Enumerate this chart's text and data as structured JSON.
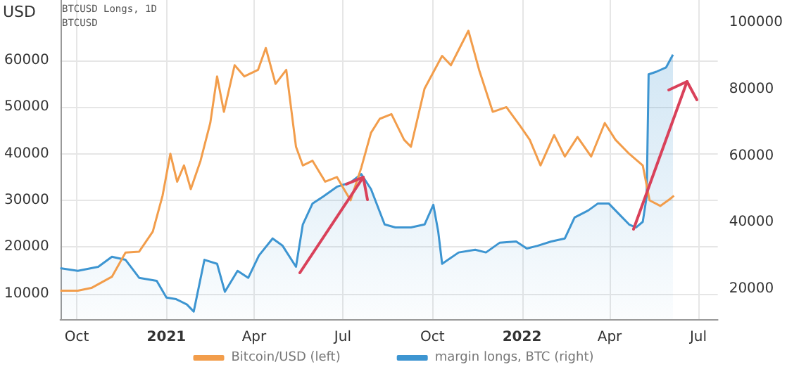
{
  "chart_data": {
    "type": "line",
    "title": "BTCUSD Longs, 1D",
    "subtitle": "BTCUSD",
    "ylabel": "USD",
    "xlim": [
      "2020-09-14",
      "2022-07-21"
    ],
    "xticks": [
      {
        "value": "2020-10-01",
        "label": "Oct"
      },
      {
        "value": "2021-01-01",
        "label": "2021"
      },
      {
        "value": "2021-04-01",
        "label": "Apr"
      },
      {
        "value": "2021-07-01",
        "label": "Jul"
      },
      {
        "value": "2021-10-01",
        "label": "Oct"
      },
      {
        "value": "2022-01-01",
        "label": "2022"
      },
      {
        "value": "2022-04-01",
        "label": "Apr"
      },
      {
        "value": "2022-07-01",
        "label": "Jul"
      }
    ],
    "ylim": [
      4500,
      73000
    ],
    "yticks": [
      10000,
      20000,
      30000,
      40000,
      50000,
      60000
    ],
    "y2lim": [
      11000,
      106700
    ],
    "y2ticks": [
      20000,
      40000,
      60000,
      80000,
      100000
    ],
    "grid": true,
    "legend": "bottom",
    "series": [
      {
        "name": "Bitcoin/USD (left)",
        "color": "#f29d4b",
        "x": [
          "2020-09-14",
          "2020-10-02",
          "2020-10-16",
          "2020-11-06",
          "2020-11-20",
          "2020-12-04",
          "2020-12-18",
          "2020-12-28",
          "2021-01-05",
          "2021-01-12",
          "2021-01-19",
          "2021-01-26",
          "2021-02-05",
          "2021-02-15",
          "2021-02-22",
          "2021-03-01",
          "2021-03-12",
          "2021-03-22",
          "2021-04-05",
          "2021-04-13",
          "2021-04-23",
          "2021-05-04",
          "2021-05-14",
          "2021-05-21",
          "2021-05-31",
          "2021-06-13",
          "2021-06-25",
          "2021-07-09",
          "2021-07-20",
          "2021-07-30",
          "2021-08-08",
          "2021-08-20",
          "2021-09-02",
          "2021-09-09",
          "2021-09-23",
          "2021-10-11",
          "2021-10-20",
          "2021-11-07",
          "2021-11-18",
          "2021-12-02",
          "2021-12-16",
          "2021-12-30",
          "2022-01-09",
          "2022-01-20",
          "2022-02-03",
          "2022-02-14",
          "2022-02-27",
          "2022-03-13",
          "2022-03-27",
          "2022-04-07",
          "2022-04-21",
          "2022-05-05",
          "2022-05-12",
          "2022-05-23",
          "2022-06-02",
          "2022-06-06"
        ],
        "values": [
          10600,
          10600,
          11200,
          13600,
          18800,
          19000,
          23300,
          31000,
          40000,
          34000,
          37500,
          32400,
          38500,
          46600,
          56600,
          49000,
          59000,
          56600,
          58000,
          62700,
          55000,
          58000,
          41500,
          37500,
          38500,
          34000,
          35000,
          30000,
          37000,
          44500,
          47500,
          48500,
          43000,
          41500,
          54000,
          61000,
          59000,
          66400,
          58000,
          49000,
          50000,
          46000,
          43000,
          37500,
          44000,
          39400,
          43600,
          39400,
          46600,
          43000,
          40000,
          37500,
          30000,
          28800,
          30300,
          31000
        ]
      },
      {
        "name": "margin longs, BTC (right)",
        "type": "area",
        "axis": "y2",
        "color": "#3d95d1",
        "x": [
          "2020-09-14",
          "2020-10-02",
          "2020-10-23",
          "2020-11-06",
          "2020-11-20",
          "2020-12-04",
          "2020-12-22",
          "2021-01-01",
          "2021-01-11",
          "2021-01-22",
          "2021-01-29",
          "2021-02-09",
          "2021-02-22",
          "2021-03-02",
          "2021-03-15",
          "2021-03-26",
          "2021-04-06",
          "2021-04-20",
          "2021-04-30",
          "2021-05-14",
          "2021-05-21",
          "2021-05-31",
          "2021-06-11",
          "2021-06-25",
          "2021-07-09",
          "2021-07-20",
          "2021-07-30",
          "2021-08-13",
          "2021-08-24",
          "2021-09-09",
          "2021-09-23",
          "2021-10-02",
          "2021-10-07",
          "2021-10-11",
          "2021-10-28",
          "2021-11-14",
          "2021-11-25",
          "2021-12-09",
          "2021-12-26",
          "2022-01-06",
          "2022-01-17",
          "2022-01-31",
          "2022-02-14",
          "2022-02-24",
          "2022-03-10",
          "2022-03-20",
          "2022-03-31",
          "2022-04-10",
          "2022-04-21",
          "2022-04-28",
          "2022-05-05",
          "2022-05-09",
          "2022-05-11",
          "2022-05-19",
          "2022-05-29",
          "2022-06-05"
        ],
        "values": [
          26300,
          25500,
          26700,
          29700,
          28800,
          23400,
          22500,
          17500,
          17000,
          15400,
          13300,
          28800,
          27600,
          19200,
          25500,
          23400,
          30100,
          35200,
          33100,
          26700,
          39400,
          45700,
          47800,
          50700,
          52000,
          54500,
          50000,
          39400,
          38500,
          38500,
          39400,
          45300,
          37300,
          27600,
          31000,
          31800,
          31000,
          33900,
          34300,
          32200,
          33000,
          34300,
          35200,
          41500,
          43600,
          45700,
          45700,
          42700,
          39400,
          38500,
          40200,
          47800,
          84400,
          85200,
          86500,
          90300
        ]
      }
    ]
  }
}
